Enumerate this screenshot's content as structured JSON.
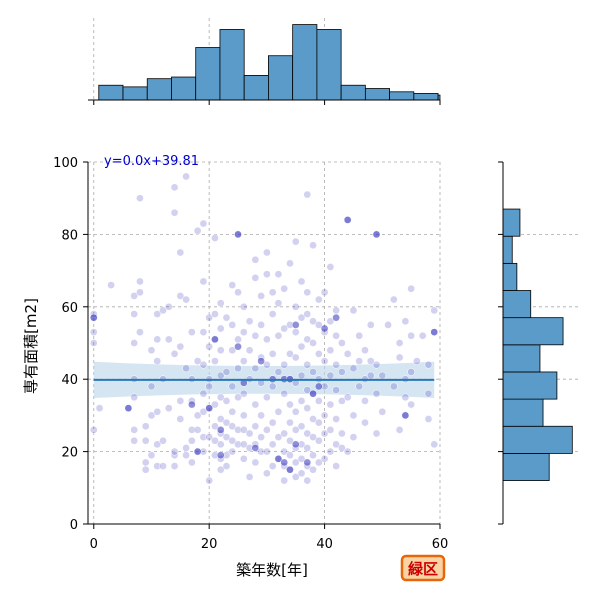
{
  "chart_data": {
    "type": "scatter",
    "xlabel": "築年数[年]",
    "ylabel": "専有面積[m2]",
    "annotation": "y=0.0x+39.81",
    "badge": "緑区",
    "xlim": [
      -1,
      60
    ],
    "ylim": [
      0,
      100
    ],
    "x_ticks": [
      0,
      20,
      40,
      60
    ],
    "y_ticks": [
      0,
      20,
      40,
      60,
      80,
      100
    ],
    "grid": true,
    "colors": {
      "points": "#3333bb",
      "hist": "#5b9bc9",
      "regression": "#2878b5",
      "ci": "#b9d4ea",
      "badge_bg": "#f8d4a4",
      "badge_border": "#e8660a",
      "annotation": "#0000cc"
    },
    "regression": {
      "slope": 0.0,
      "intercept": 39.81,
      "ci_at_edges": 5,
      "ci_at_center": 1
    },
    "points": [
      [
        0,
        26
      ],
      [
        0,
        50
      ],
      [
        0,
        53
      ],
      [
        0,
        57
      ],
      [
        0,
        58
      ],
      [
        1,
        32
      ],
      [
        3,
        66
      ],
      [
        6,
        32
      ],
      [
        7,
        35
      ],
      [
        7,
        23
      ],
      [
        7,
        26
      ],
      [
        7,
        40
      ],
      [
        7,
        50
      ],
      [
        7,
        58
      ],
      [
        7,
        63
      ],
      [
        8,
        53
      ],
      [
        8,
        64
      ],
      [
        8,
        67
      ],
      [
        8,
        90
      ],
      [
        9,
        15
      ],
      [
        9,
        17
      ],
      [
        9,
        23
      ],
      [
        9,
        27
      ],
      [
        10,
        19
      ],
      [
        10,
        30
      ],
      [
        10,
        38
      ],
      [
        10,
        48
      ],
      [
        11,
        16
      ],
      [
        11,
        22
      ],
      [
        11,
        31
      ],
      [
        11,
        45
      ],
      [
        11,
        51
      ],
      [
        11,
        58
      ],
      [
        12,
        16
      ],
      [
        12,
        23
      ],
      [
        12,
        40
      ],
      [
        12,
        59
      ],
      [
        13,
        32
      ],
      [
        13,
        51
      ],
      [
        13,
        60
      ],
      [
        14,
        16
      ],
      [
        14,
        19
      ],
      [
        14,
        20
      ],
      [
        14,
        47
      ],
      [
        14,
        86
      ],
      [
        14,
        93
      ],
      [
        15,
        29
      ],
      [
        15,
        34
      ],
      [
        15,
        49
      ],
      [
        15,
        63
      ],
      [
        15,
        75
      ],
      [
        16,
        19
      ],
      [
        16,
        21
      ],
      [
        16,
        43
      ],
      [
        16,
        62
      ],
      [
        16,
        96
      ],
      [
        17,
        17
      ],
      [
        17,
        23
      ],
      [
        17,
        26
      ],
      [
        17,
        34
      ],
      [
        17,
        40
      ],
      [
        17,
        53
      ],
      [
        18,
        20
      ],
      [
        18,
        26
      ],
      [
        18,
        30
      ],
      [
        18,
        45
      ],
      [
        18,
        81
      ],
      [
        19,
        20
      ],
      [
        19,
        24
      ],
      [
        19,
        31
      ],
      [
        19,
        36
      ],
      [
        19,
        44
      ],
      [
        19,
        53
      ],
      [
        19,
        67
      ],
      [
        19,
        83
      ],
      [
        20,
        12
      ],
      [
        20,
        24
      ],
      [
        20,
        32
      ],
      [
        20,
        38
      ],
      [
        20,
        40
      ],
      [
        20,
        49
      ],
      [
        20,
        57
      ],
      [
        21,
        19
      ],
      [
        21,
        23
      ],
      [
        21,
        27
      ],
      [
        21,
        33
      ],
      [
        21,
        45
      ],
      [
        21,
        51
      ],
      [
        21,
        58
      ],
      [
        21,
        79
      ],
      [
        22,
        15
      ],
      [
        22,
        18
      ],
      [
        22,
        22
      ],
      [
        22,
        25
      ],
      [
        22,
        29
      ],
      [
        22,
        35
      ],
      [
        22,
        41
      ],
      [
        22,
        48
      ],
      [
        22,
        54
      ],
      [
        22,
        61
      ],
      [
        23,
        16
      ],
      [
        23,
        19
      ],
      [
        23,
        24
      ],
      [
        23,
        28
      ],
      [
        23,
        34
      ],
      [
        23,
        42
      ],
      [
        23,
        57
      ],
      [
        24,
        20
      ],
      [
        24,
        23
      ],
      [
        24,
        27
      ],
      [
        24,
        31
      ],
      [
        24,
        38
      ],
      [
        24,
        48
      ],
      [
        24,
        55
      ],
      [
        24,
        66
      ],
      [
        25,
        22
      ],
      [
        25,
        26
      ],
      [
        25,
        35
      ],
      [
        25,
        43
      ],
      [
        25,
        51
      ],
      [
        25,
        64
      ],
      [
        25,
        80
      ],
      [
        26,
        18
      ],
      [
        26,
        22
      ],
      [
        26,
        26
      ],
      [
        26,
        30
      ],
      [
        26,
        36
      ],
      [
        26,
        45
      ],
      [
        26,
        53
      ],
      [
        26,
        60
      ],
      [
        27,
        13
      ],
      [
        27,
        21
      ],
      [
        27,
        25
      ],
      [
        27,
        40
      ],
      [
        27,
        48
      ],
      [
        27,
        56
      ],
      [
        28,
        17
      ],
      [
        28,
        22
      ],
      [
        28,
        27
      ],
      [
        28,
        33
      ],
      [
        28,
        43
      ],
      [
        28,
        52
      ],
      [
        28,
        68
      ],
      [
        28,
        73
      ],
      [
        29,
        20
      ],
      [
        29,
        24
      ],
      [
        29,
        30
      ],
      [
        29,
        39
      ],
      [
        29,
        46
      ],
      [
        29,
        55
      ],
      [
        29,
        63
      ],
      [
        30,
        14
      ],
      [
        30,
        20
      ],
      [
        30,
        26
      ],
      [
        30,
        35
      ],
      [
        30,
        44
      ],
      [
        30,
        51
      ],
      [
        30,
        69
      ],
      [
        30,
        75
      ],
      [
        31,
        16
      ],
      [
        31,
        22
      ],
      [
        31,
        28
      ],
      [
        31,
        38
      ],
      [
        31,
        47
      ],
      [
        31,
        58
      ],
      [
        31,
        64
      ],
      [
        32,
        18
      ],
      [
        32,
        24
      ],
      [
        32,
        31
      ],
      [
        32,
        42
      ],
      [
        32,
        52
      ],
      [
        32,
        61
      ],
      [
        32,
        69
      ],
      [
        33,
        12
      ],
      [
        33,
        16
      ],
      [
        33,
        20
      ],
      [
        33,
        25
      ],
      [
        33,
        36
      ],
      [
        33,
        44
      ],
      [
        33,
        54
      ],
      [
        33,
        65
      ],
      [
        34,
        15
      ],
      [
        34,
        19
      ],
      [
        34,
        23
      ],
      [
        34,
        28
      ],
      [
        34,
        33
      ],
      [
        34,
        40
      ],
      [
        34,
        47
      ],
      [
        34,
        55
      ],
      [
        34,
        72
      ],
      [
        35,
        13
      ],
      [
        35,
        17
      ],
      [
        35,
        21
      ],
      [
        35,
        26
      ],
      [
        35,
        31
      ],
      [
        35,
        39
      ],
      [
        35,
        46
      ],
      [
        35,
        53
      ],
      [
        35,
        60
      ],
      [
        35,
        78
      ],
      [
        36,
        14
      ],
      [
        36,
        18
      ],
      [
        36,
        22
      ],
      [
        36,
        27
      ],
      [
        36,
        34
      ],
      [
        36,
        41
      ],
      [
        36,
        49
      ],
      [
        36,
        57
      ],
      [
        36,
        67
      ],
      [
        37,
        12
      ],
      [
        37,
        16
      ],
      [
        37,
        21
      ],
      [
        37,
        25
      ],
      [
        37,
        32
      ],
      [
        37,
        37
      ],
      [
        37,
        44
      ],
      [
        37,
        51
      ],
      [
        37,
        58
      ],
      [
        37,
        64
      ],
      [
        37,
        91
      ],
      [
        38,
        15
      ],
      [
        38,
        19
      ],
      [
        38,
        24
      ],
      [
        38,
        29
      ],
      [
        38,
        36
      ],
      [
        38,
        42
      ],
      [
        38,
        50
      ],
      [
        38,
        56
      ],
      [
        38,
        77
      ],
      [
        39,
        17
      ],
      [
        39,
        23
      ],
      [
        39,
        28
      ],
      [
        39,
        34
      ],
      [
        39,
        40
      ],
      [
        39,
        47
      ],
      [
        39,
        55
      ],
      [
        39,
        62
      ],
      [
        40,
        18
      ],
      [
        40,
        25
      ],
      [
        40,
        30
      ],
      [
        40,
        38
      ],
      [
        40,
        45
      ],
      [
        40,
        53
      ],
      [
        40,
        64
      ],
      [
        41,
        20
      ],
      [
        41,
        26
      ],
      [
        41,
        33
      ],
      [
        41,
        41
      ],
      [
        41,
        48
      ],
      [
        41,
        56
      ],
      [
        41,
        71
      ],
      [
        42,
        16
      ],
      [
        42,
        22
      ],
      [
        42,
        29
      ],
      [
        42,
        37
      ],
      [
        42,
        44
      ],
      [
        42,
        52
      ],
      [
        42,
        59
      ],
      [
        43,
        21
      ],
      [
        43,
        25
      ],
      [
        43,
        34
      ],
      [
        43,
        42
      ],
      [
        43,
        50
      ],
      [
        44,
        20
      ],
      [
        44,
        35
      ],
      [
        44,
        47
      ],
      [
        44,
        84
      ],
      [
        45,
        24
      ],
      [
        45,
        30
      ],
      [
        45,
        43
      ],
      [
        45,
        59
      ],
      [
        46,
        38
      ],
      [
        46,
        45
      ],
      [
        46,
        52
      ],
      [
        47,
        28
      ],
      [
        47,
        34
      ],
      [
        47,
        40
      ],
      [
        47,
        48
      ],
      [
        48,
        41
      ],
      [
        48,
        45
      ],
      [
        48,
        55
      ],
      [
        49,
        25
      ],
      [
        49,
        36
      ],
      [
        49,
        44
      ],
      [
        49,
        80
      ],
      [
        50,
        31
      ],
      [
        50,
        41
      ],
      [
        51,
        55
      ],
      [
        52,
        38
      ],
      [
        52,
        62
      ],
      [
        53,
        26
      ],
      [
        53,
        46
      ],
      [
        53,
        50
      ],
      [
        54,
        30
      ],
      [
        54,
        35
      ],
      [
        54,
        40
      ],
      [
        54,
        56
      ],
      [
        55,
        33
      ],
      [
        55,
        42
      ],
      [
        55,
        52
      ],
      [
        55,
        65
      ],
      [
        56,
        45
      ],
      [
        57,
        52
      ],
      [
        58,
        29
      ],
      [
        58,
        36
      ],
      [
        58,
        44
      ],
      [
        59,
        22
      ],
      [
        59,
        53
      ],
      [
        59,
        59
      ]
    ],
    "highlighted_points": [
      [
        6,
        32
      ],
      [
        17,
        33
      ],
      [
        18,
        20
      ],
      [
        20,
        32
      ],
      [
        21,
        51
      ],
      [
        22,
        19
      ],
      [
        22,
        26
      ],
      [
        25,
        80
      ],
      [
        25,
        49
      ],
      [
        26,
        39
      ],
      [
        28,
        21
      ],
      [
        29,
        45
      ],
      [
        31,
        40
      ],
      [
        32,
        18
      ],
      [
        33,
        17
      ],
      [
        33,
        40
      ],
      [
        34,
        40
      ],
      [
        34,
        15
      ],
      [
        35,
        22
      ],
      [
        35,
        55
      ],
      [
        37,
        17
      ],
      [
        38,
        36
      ],
      [
        39,
        38
      ],
      [
        40,
        54
      ],
      [
        42,
        57
      ],
      [
        44,
        84
      ],
      [
        49,
        80
      ],
      [
        54,
        30
      ],
      [
        59,
        53
      ],
      [
        0,
        57
      ]
    ],
    "x_histogram": {
      "bin_edges": [
        0,
        4.2,
        8.4,
        12.6,
        16.8,
        21,
        25.2,
        29.4,
        33.6,
        37.8,
        42,
        46.2,
        50.4,
        54.6,
        58.8,
        63
      ],
      "counts": [
        9,
        8,
        13,
        14,
        32,
        43,
        15,
        27,
        46,
        43,
        9,
        7,
        5,
        4,
        3
      ],
      "ylim": [
        0,
        50
      ]
    },
    "y_histogram": {
      "bin_edges": [
        12,
        19.5,
        27,
        34.5,
        42,
        49.5,
        57,
        64.5,
        72,
        79.5,
        87
      ],
      "counts": [
        30,
        45,
        26,
        35,
        24,
        39,
        18,
        9,
        6,
        11
      ],
      "xlim": [
        0,
        50
      ]
    }
  }
}
